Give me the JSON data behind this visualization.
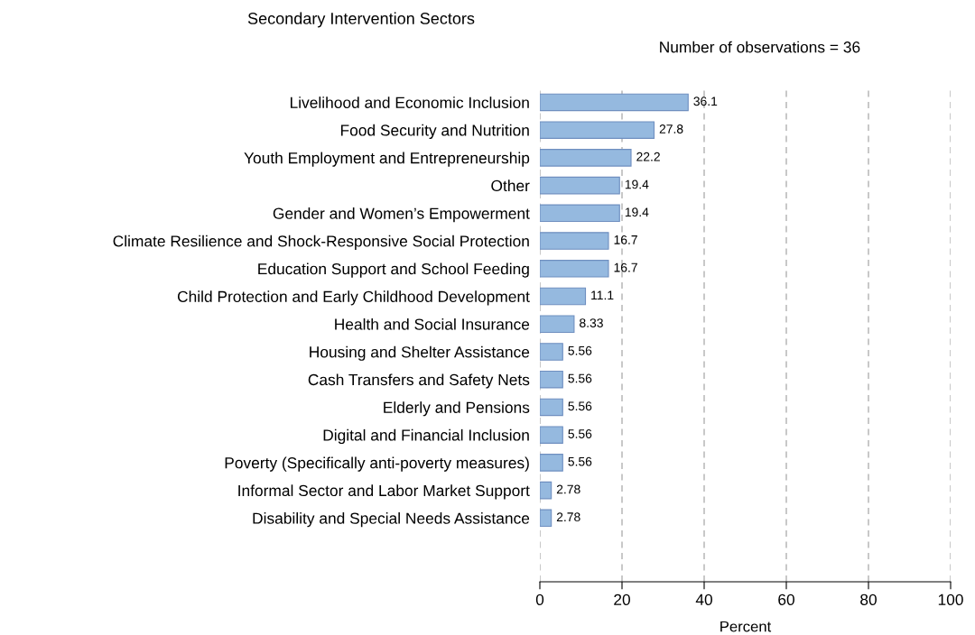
{
  "chart_data": {
    "type": "bar",
    "orientation": "horizontal",
    "title": "Secondary Intervention Sectors",
    "xlabel": "Percent",
    "annotations": [
      "Number of observations = 36"
    ],
    "categories": [
      "Livelihood and Economic Inclusion",
      "Food Security and Nutrition",
      "Youth Employment and Entrepreneurship",
      "Other",
      "Gender and Women’s Empowerment",
      "Climate Resilience and Shock-Responsive Social Protection",
      "Education Support and School Feeding",
      "Child Protection and Early Childhood Development",
      "Health and Social Insurance",
      "Housing and Shelter Assistance",
      "Cash Transfers and Safety Nets",
      "Elderly and Pensions",
      "Digital and Financial Inclusion",
      "Poverty (Specifically anti-poverty measures)",
      "Informal Sector and Labor Market Support",
      "Disability and Special Needs Assistance"
    ],
    "values": [
      36.1,
      27.8,
      22.2,
      19.4,
      19.4,
      16.7,
      16.7,
      11.1,
      8.33,
      5.56,
      5.56,
      5.56,
      5.56,
      5.56,
      2.78,
      2.78
    ],
    "color": "#95b9df",
    "xlim": [
      0,
      100
    ],
    "xticks": [
      0,
      20,
      40,
      60,
      80,
      100
    ],
    "grid": "x",
    "data_labels": true
  }
}
